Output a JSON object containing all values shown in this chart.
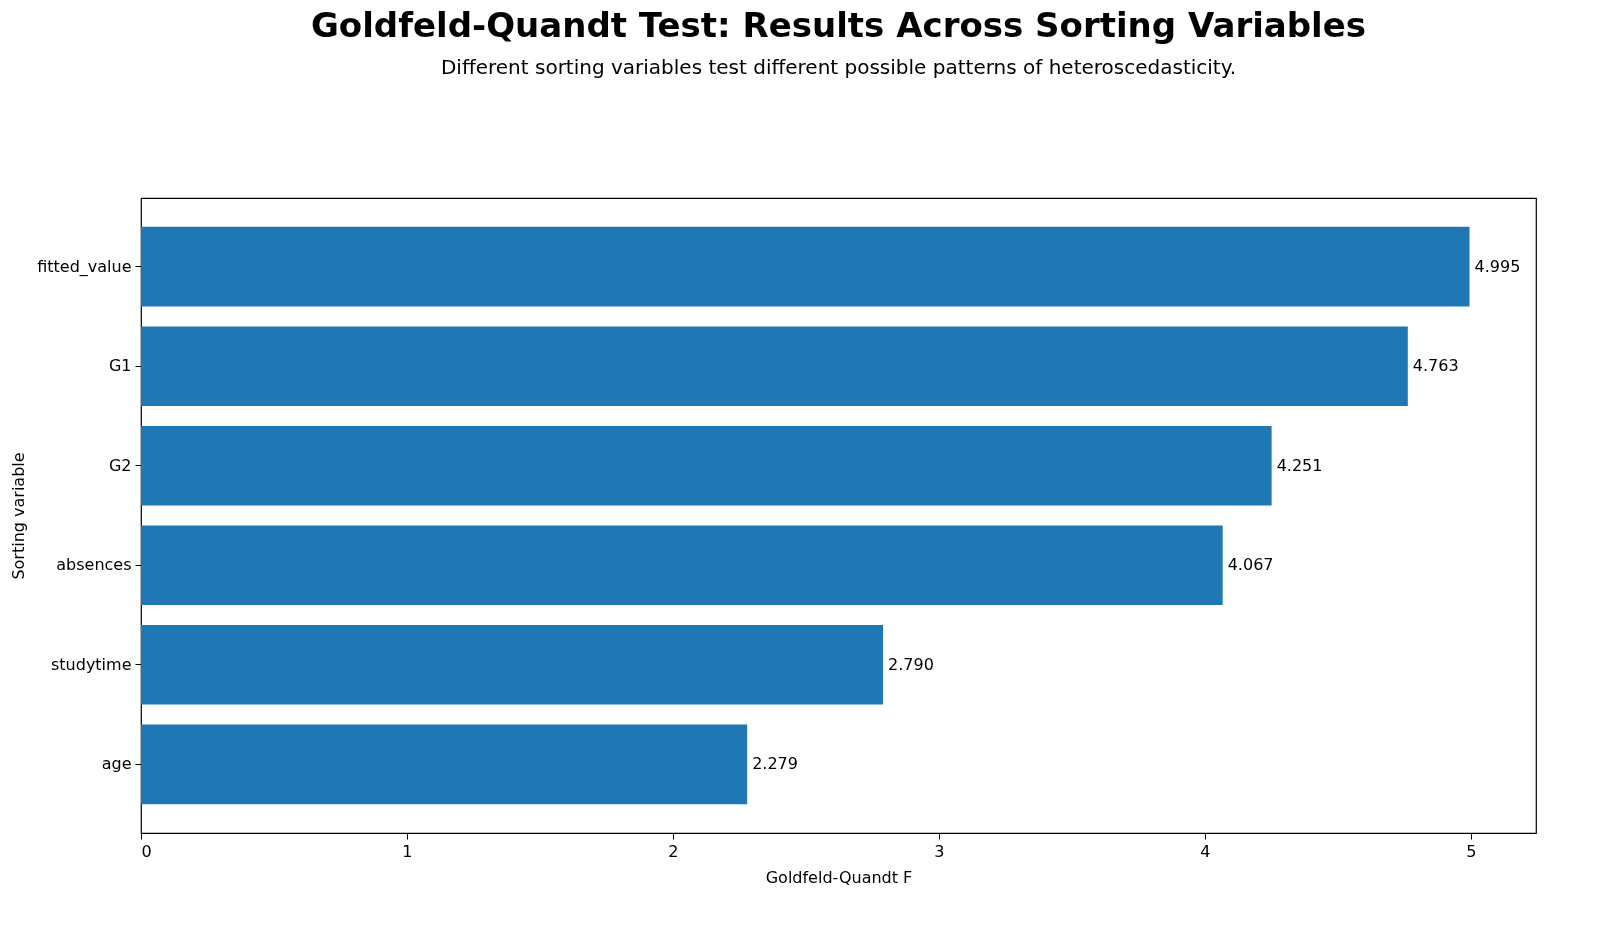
{
  "chart_data": {
    "type": "bar",
    "orientation": "horizontal",
    "title": "Goldfeld-Quandt Test: Results Across Sorting Variables",
    "subtitle": "Different sorting variables test different possible patterns of heteroscedasticity.",
    "xlabel": "Goldfeld-Quandt F",
    "ylabel": "Sorting variable",
    "categories": [
      "fitted_value",
      "G1",
      "G2",
      "absences",
      "studytime",
      "age"
    ],
    "values": [
      4.995,
      4.763,
      4.251,
      4.067,
      2.79,
      2.279
    ],
    "value_labels": [
      "4.995",
      "4.763",
      "4.251",
      "4.067",
      "2.790",
      "2.279"
    ],
    "color": "#1f77b4",
    "xlim": [
      0,
      5.245
    ],
    "xticks": [
      0,
      1,
      2,
      3,
      4,
      5
    ],
    "grid": false
  }
}
